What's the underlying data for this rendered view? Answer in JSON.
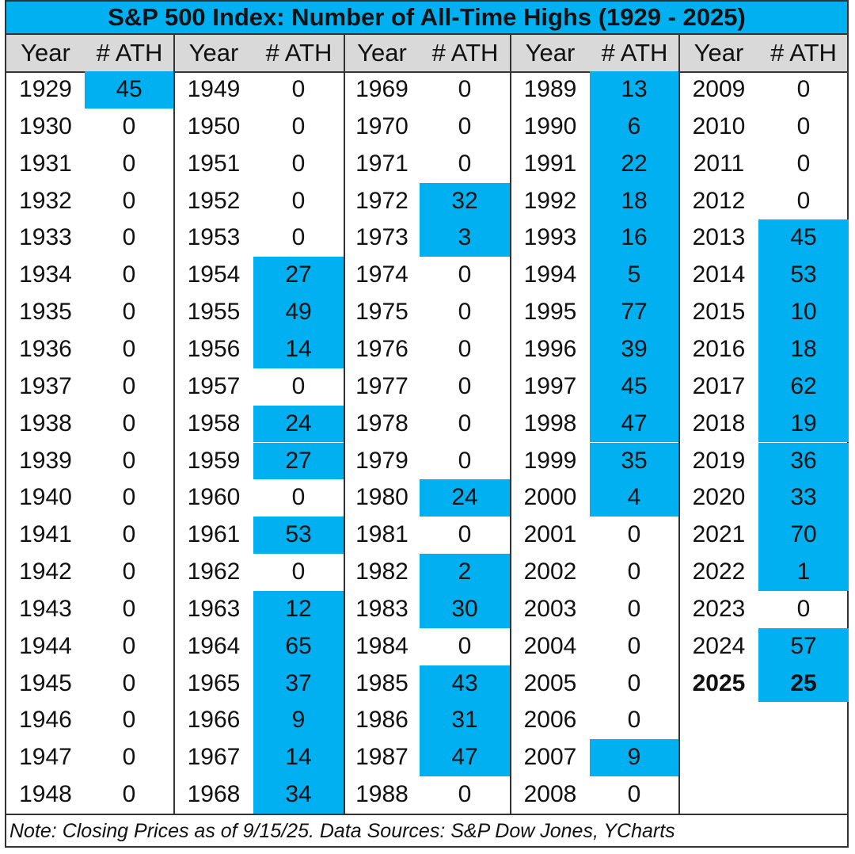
{
  "chart_data": {
    "type": "table",
    "title": "S&P 500 Index: Number of All-Time Highs (1929 - 2025)",
    "columns": [
      "Year",
      "# ATH"
    ],
    "highlight_color": "#00b0f0",
    "header_color": "#d9d9d9",
    "highlight_rule": "cells with ATH > 0 shaded blue",
    "bold_year": "2025",
    "rows": [
      [
        "1929",
        45
      ],
      [
        "1930",
        0
      ],
      [
        "1931",
        0
      ],
      [
        "1932",
        0
      ],
      [
        "1933",
        0
      ],
      [
        "1934",
        0
      ],
      [
        "1935",
        0
      ],
      [
        "1936",
        0
      ],
      [
        "1937",
        0
      ],
      [
        "1938",
        0
      ],
      [
        "1939",
        0
      ],
      [
        "1940",
        0
      ],
      [
        "1941",
        0
      ],
      [
        "1942",
        0
      ],
      [
        "1943",
        0
      ],
      [
        "1944",
        0
      ],
      [
        "1945",
        0
      ],
      [
        "1946",
        0
      ],
      [
        "1947",
        0
      ],
      [
        "1948",
        0
      ],
      [
        "1949",
        0
      ],
      [
        "1950",
        0
      ],
      [
        "1951",
        0
      ],
      [
        "1952",
        0
      ],
      [
        "1953",
        0
      ],
      [
        "1954",
        27
      ],
      [
        "1955",
        49
      ],
      [
        "1956",
        14
      ],
      [
        "1957",
        0
      ],
      [
        "1958",
        24
      ],
      [
        "1959",
        27
      ],
      [
        "1960",
        0
      ],
      [
        "1961",
        53
      ],
      [
        "1962",
        0
      ],
      [
        "1963",
        12
      ],
      [
        "1964",
        65
      ],
      [
        "1965",
        37
      ],
      [
        "1966",
        9
      ],
      [
        "1967",
        14
      ],
      [
        "1968",
        34
      ],
      [
        "1969",
        0
      ],
      [
        "1970",
        0
      ],
      [
        "1971",
        0
      ],
      [
        "1972",
        32
      ],
      [
        "1973",
        3
      ],
      [
        "1974",
        0
      ],
      [
        "1975",
        0
      ],
      [
        "1976",
        0
      ],
      [
        "1977",
        0
      ],
      [
        "1978",
        0
      ],
      [
        "1979",
        0
      ],
      [
        "1980",
        24
      ],
      [
        "1981",
        0
      ],
      [
        "1982",
        2
      ],
      [
        "1983",
        30
      ],
      [
        "1984",
        0
      ],
      [
        "1985",
        43
      ],
      [
        "1986",
        31
      ],
      [
        "1987",
        47
      ],
      [
        "1988",
        0
      ],
      [
        "1989",
        13
      ],
      [
        "1990",
        6
      ],
      [
        "1991",
        22
      ],
      [
        "1992",
        18
      ],
      [
        "1993",
        16
      ],
      [
        "1994",
        5
      ],
      [
        "1995",
        77
      ],
      [
        "1996",
        39
      ],
      [
        "1997",
        45
      ],
      [
        "1998",
        47
      ],
      [
        "1999",
        35
      ],
      [
        "2000",
        4
      ],
      [
        "2001",
        0
      ],
      [
        "2002",
        0
      ],
      [
        "2003",
        0
      ],
      [
        "2004",
        0
      ],
      [
        "2005",
        0
      ],
      [
        "2006",
        0
      ],
      [
        "2007",
        9
      ],
      [
        "2008",
        0
      ],
      [
        "2009",
        0
      ],
      [
        "2010",
        0
      ],
      [
        "2011",
        0
      ],
      [
        "2012",
        0
      ],
      [
        "2013",
        45
      ],
      [
        "2014",
        53
      ],
      [
        "2015",
        10
      ],
      [
        "2016",
        18
      ],
      [
        "2017",
        62
      ],
      [
        "2018",
        19
      ],
      [
        "2019",
        36
      ],
      [
        "2020",
        33
      ],
      [
        "2021",
        70
      ],
      [
        "2022",
        1
      ],
      [
        "2023",
        0
      ],
      [
        "2024",
        57
      ],
      [
        "2025",
        25
      ]
    ],
    "note": "Note: Closing Prices as of 9/15/25. Data Sources: S&P Dow Jones, YCharts"
  }
}
